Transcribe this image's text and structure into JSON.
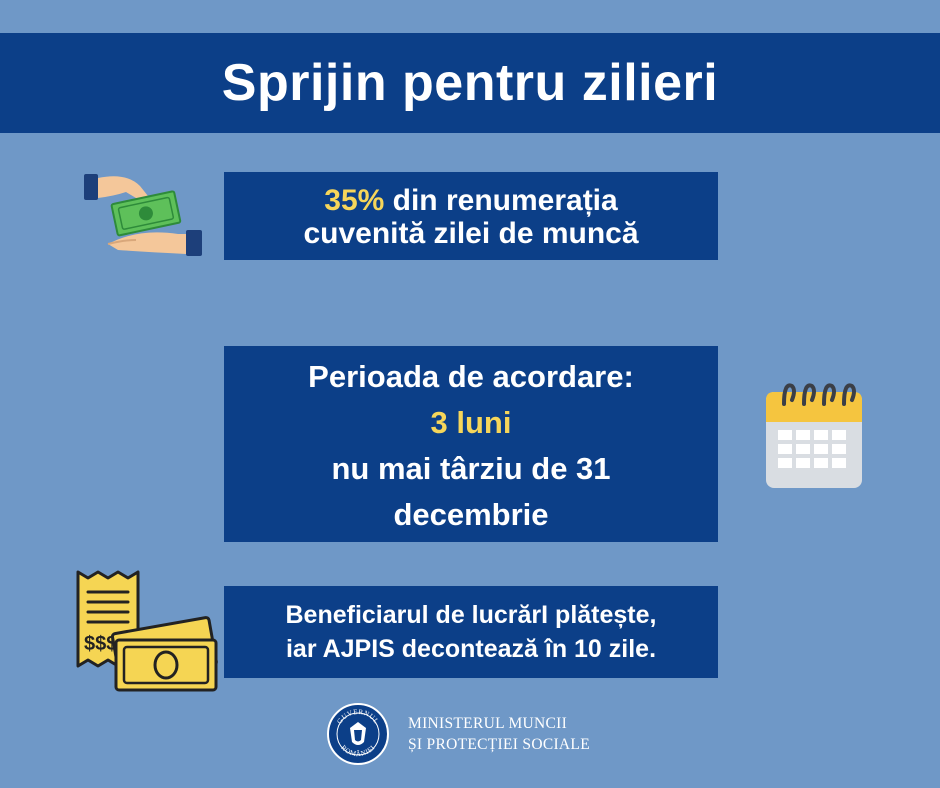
{
  "header": {
    "title": "Sprijin pentru zilieri"
  },
  "card_pay": {
    "percent": "35%",
    "line1_rest": " din renumerația",
    "line2": "cuvenită zilei de muncă"
  },
  "card_period": {
    "label": "Perioada de acordare:",
    "duration": "3 luni",
    "deadline_line1": "nu mai târziu de 31",
    "deadline_line2": "decembrie"
  },
  "card_payment": {
    "line1": "Beneficiarul de lucrărI plătește,",
    "line2": "iar  AJPIS decontează în 10 zile."
  },
  "footer": {
    "seal_text": "GUVERNUL ROMÂNIEI",
    "ministry_line1": "MINISTERUL MUNCII",
    "ministry_line2": "ȘI PROTECȚIEI SOCIALE"
  },
  "icons": {
    "money_hand": "money-hand-icon",
    "calendar": "calendar-icon",
    "receipt_cash": "receipt-cash-icon",
    "seal": "government-seal-icon"
  },
  "colors": {
    "background": "#6f98c7",
    "panel": "#0c3f88",
    "highlight": "#f6d65a",
    "text": "#ffffff"
  }
}
